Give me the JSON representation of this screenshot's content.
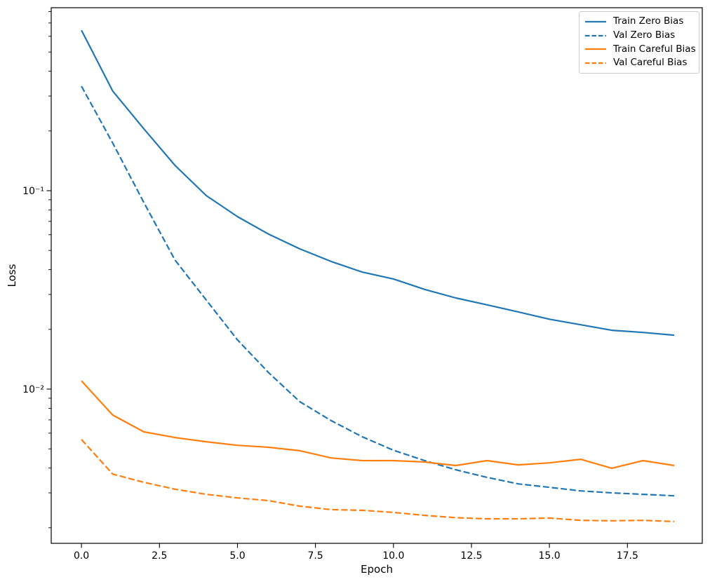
{
  "chart_data": {
    "type": "line",
    "title": "",
    "xlabel": "Epoch",
    "ylabel": "Loss",
    "yscale": "log",
    "grid": false,
    "legend_position": "upper right",
    "x": [
      0,
      1,
      2,
      3,
      4,
      5,
      6,
      7,
      8,
      9,
      10,
      11,
      12,
      13,
      14,
      15,
      16,
      17,
      18,
      19
    ],
    "series": [
      {
        "name": "Train Zero Bias",
        "color": "#1f77b4",
        "style": "solid",
        "values": [
          0.644,
          0.318,
          0.205,
          0.134,
          0.0945,
          0.074,
          0.0604,
          0.0509,
          0.044,
          0.0389,
          0.0359,
          0.0318,
          0.0288,
          0.0266,
          0.0245,
          0.0225,
          0.0211,
          0.0198,
          0.0193,
          0.0187
        ]
      },
      {
        "name": "Val Zero Bias",
        "color": "#1f77b4",
        "style": "dashed",
        "values": [
          0.336,
          0.174,
          0.0871,
          0.0447,
          0.0281,
          0.0177,
          0.0121,
          0.00864,
          0.00694,
          0.00575,
          0.00492,
          0.00436,
          0.00392,
          0.00359,
          0.00333,
          0.0032,
          0.00307,
          0.003,
          0.00295,
          0.0029
        ]
      },
      {
        "name": "Train Careful Bias",
        "color": "#ff7f0e",
        "style": "solid",
        "values": [
          0.011,
          0.0074,
          0.00609,
          0.0057,
          0.00543,
          0.00521,
          0.00509,
          0.00489,
          0.0045,
          0.00436,
          0.00436,
          0.00429,
          0.00412,
          0.00436,
          0.00415,
          0.00425,
          0.00443,
          0.00399,
          0.00436,
          0.00412
        ]
      },
      {
        "name": "Val Careful Bias",
        "color": "#ff7f0e",
        "style": "dashed",
        "values": [
          0.00557,
          0.00373,
          0.00339,
          0.00313,
          0.00295,
          0.00283,
          0.00274,
          0.00257,
          0.00247,
          0.00245,
          0.00239,
          0.00231,
          0.00225,
          0.00222,
          0.00222,
          0.00224,
          0.00218,
          0.00217,
          0.00218,
          0.00215
        ]
      }
    ],
    "xlim": [
      -0.97,
      19.9
    ],
    "ylim": [
      0.00167,
      0.836
    ],
    "xticks": [
      0,
      2.5,
      5,
      7.5,
      10,
      12.5,
      15,
      17.5
    ],
    "xtick_labels": [
      "0.0",
      "2.5",
      "5.0",
      "7.5",
      "10.0",
      "12.5",
      "15.0",
      "17.5"
    ],
    "yticks": [
      0.1,
      0.01
    ],
    "ytick_labels": [
      "10⁻¹",
      "10⁻²"
    ]
  }
}
